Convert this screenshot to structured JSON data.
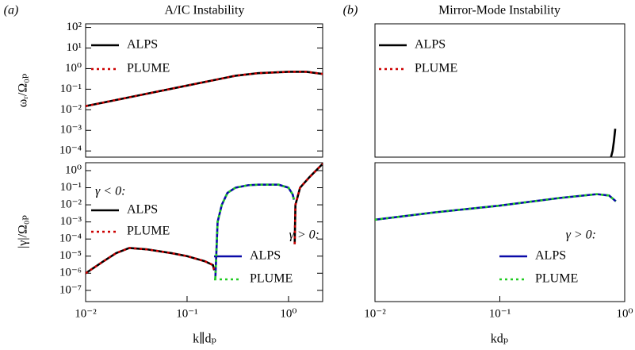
{
  "chart_data": [
    {
      "type": "line",
      "label": "(a)",
      "title": "A/IC Instability",
      "ylabel": "ωᵣ/Ω₀ₚ",
      "xscale": "log",
      "yscale": "log",
      "xlim": [
        0.01,
        2.17
      ],
      "ylim": [
        5e-05,
        150
      ],
      "yticks": [
        {
          "value": 100,
          "label": "10²"
        },
        {
          "value": 10,
          "label": "10¹"
        },
        {
          "value": 1,
          "label": "10⁰"
        },
        {
          "value": 0.1,
          "label": "10⁻¹"
        },
        {
          "value": 0.01,
          "label": "10⁻²"
        },
        {
          "value": 0.001,
          "label": "10⁻³"
        },
        {
          "value": 0.0001,
          "label": "10⁻⁴"
        }
      ],
      "series": [
        {
          "name": "ALPS",
          "color": "#000000",
          "style": "solid",
          "x": [
            0.01,
            0.03,
            0.1,
            0.2,
            0.3,
            0.5,
            1,
            1.5,
            2.17
          ],
          "values": [
            0.015,
            0.045,
            0.15,
            0.3,
            0.45,
            0.6,
            0.7,
            0.7,
            0.55
          ]
        },
        {
          "name": "PLUME",
          "color": "#cc0000",
          "style": "dotted",
          "x": [
            0.01,
            0.03,
            0.1,
            0.2,
            0.3,
            0.5,
            1,
            1.5,
            2.17
          ],
          "values": [
            0.015,
            0.045,
            0.15,
            0.3,
            0.45,
            0.6,
            0.7,
            0.7,
            0.55
          ]
        }
      ]
    },
    {
      "type": "line",
      "ylabel": "|γ|/Ω₀ₚ",
      "xlabel": "k∥dₚ",
      "xscale": "log",
      "yscale": "log",
      "xlim": [
        0.01,
        2.17
      ],
      "ylim": [
        2.2e-08,
        2.9
      ],
      "xticks": [
        {
          "value": 0.01,
          "label": "10⁻²"
        },
        {
          "value": 0.1,
          "label": "10⁻¹"
        },
        {
          "value": 1,
          "label": "10⁰"
        }
      ],
      "yticks": [
        {
          "value": 1,
          "label": "10⁰"
        },
        {
          "value": 0.1,
          "label": "10⁻¹"
        },
        {
          "value": 0.01,
          "label": "10⁻²"
        },
        {
          "value": 0.001,
          "label": "10⁻³"
        },
        {
          "value": 0.0001,
          "label": "10⁻⁴"
        },
        {
          "value": 1e-05,
          "label": "10⁻⁵"
        },
        {
          "value": 1e-06,
          "label": "10⁻⁶"
        },
        {
          "value": 1e-07,
          "label": "10⁻⁷"
        }
      ],
      "series_groups": [
        {
          "title": "γ < 0:",
          "series": [
            {
              "name": "ALPS",
              "color": "#000000",
              "style": "solid",
              "x": [
                0.01,
                0.015,
                0.02,
                0.027,
                0.04,
                0.07,
                0.1,
                0.15,
                0.18,
                0.185,
                1,
                1.15,
                1.17,
                1.3,
                1.6,
                2.17
              ],
              "values": [
                1e-06,
                5e-06,
                1.5e-05,
                3e-05,
                2.5e-05,
                1.5e-05,
                1e-05,
                5e-06,
                3e-06,
                1.5e-06,
                null,
                5e-05,
                0.01,
                0.1,
                0.4,
                2.5
              ]
            },
            {
              "name": "PLUME",
              "color": "#cc0000",
              "style": "dotted",
              "x": [
                0.01,
                0.015,
                0.02,
                0.027,
                0.04,
                0.07,
                0.1,
                0.15,
                0.18,
                0.185,
                1,
                1.15,
                1.17,
                1.3,
                1.6,
                2.17
              ],
              "values": [
                1e-06,
                5e-06,
                1.5e-05,
                3e-05,
                2.5e-05,
                1.5e-05,
                1e-05,
                5e-06,
                3e-06,
                1.5e-06,
                null,
                5e-05,
                0.01,
                0.1,
                0.4,
                2.5
              ]
            }
          ]
        },
        {
          "title": "γ > 0:",
          "series": [
            {
              "name": "ALPS",
              "color": "#0a0aa8",
              "style": "solid",
              "x": [
                0.19,
                0.2,
                0.22,
                0.25,
                0.3,
                0.4,
                0.5,
                0.8,
                1,
                1.1,
                1.13
              ],
              "values": [
                5e-07,
                0.001,
                0.01,
                0.05,
                0.1,
                0.14,
                0.15,
                0.15,
                0.1,
                0.04,
                0.02
              ]
            },
            {
              "name": "PLUME",
              "color": "#22cc22",
              "style": "dotted",
              "x": [
                0.19,
                0.2,
                0.22,
                0.25,
                0.3,
                0.4,
                0.5,
                0.8,
                1,
                1.1,
                1.13
              ],
              "values": [
                5e-07,
                0.001,
                0.01,
                0.05,
                0.1,
                0.14,
                0.15,
                0.15,
                0.1,
                0.04,
                0.02
              ]
            }
          ]
        }
      ]
    },
    {
      "type": "line",
      "label": "(b)",
      "title": "Mirror-Mode Instability",
      "xscale": "log",
      "yscale": "log",
      "xlim": [
        0.01,
        1
      ],
      "ylim": [
        5e-05,
        150
      ],
      "series": [
        {
          "name": "ALPS",
          "color": "#000000",
          "style": "solid",
          "x": [
            0.76,
            0.8,
            0.82,
            0.84
          ],
          "values": [
            3e-05,
            0.0001,
            0.0003,
            0.0012
          ]
        },
        {
          "name": "PLUME",
          "color": "#cc0000",
          "style": "dotted",
          "x": [],
          "values": []
        }
      ]
    },
    {
      "type": "line",
      "xlabel": "kdₚ",
      "xscale": "log",
      "yscale": "log",
      "xlim": [
        0.01,
        1
      ],
      "ylim": [
        2.2e-08,
        2.9
      ],
      "xticks": [
        {
          "value": 0.01,
          "label": "10⁻²"
        },
        {
          "value": 0.1,
          "label": "10⁻¹"
        },
        {
          "value": 1,
          "label": "10⁰"
        }
      ],
      "series_groups": [
        {
          "title": "γ > 0:",
          "series": [
            {
              "name": "ALPS",
              "color": "#0a0aa8",
              "style": "solid",
              "x": [
                0.01,
                0.03,
                0.1,
                0.3,
                0.6,
                0.75,
                0.85
              ],
              "values": [
                0.00135,
                0.0036,
                0.009,
                0.025,
                0.042,
                0.035,
                0.016
              ]
            },
            {
              "name": "PLUME",
              "color": "#22cc22",
              "style": "dotted",
              "x": [
                0.01,
                0.03,
                0.1,
                0.3,
                0.6,
                0.75,
                0.85
              ],
              "values": [
                0.00135,
                0.0036,
                0.009,
                0.025,
                0.042,
                0.035,
                0.016
              ]
            }
          ]
        }
      ]
    }
  ]
}
